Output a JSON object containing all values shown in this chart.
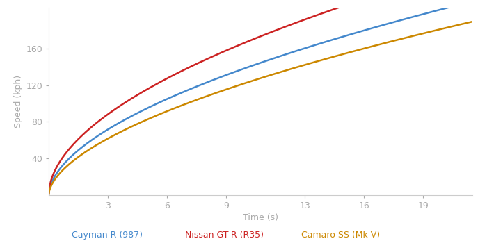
{
  "xlabel": "Time (s)",
  "ylabel": "Speed (kph)",
  "background_color": "#ffffff",
  "spine_color": "#cccccc",
  "text_color": "#aaaaaa",
  "xticks": [
    3,
    6,
    9,
    13,
    16,
    19
  ],
  "yticks": [
    40,
    80,
    120,
    160
  ],
  "xlim": [
    0,
    21.5
  ],
  "ylim": [
    0,
    205
  ],
  "curves": [
    {
      "label": "Cayman R (987)",
      "color": "#4488cc",
      "t_ref": 5.5,
      "v_ref": 100,
      "n": 0.55
    },
    {
      "label": "Nissan GT-R (R35)",
      "color": "#cc2222",
      "t_ref": 3.8,
      "v_ref": 100,
      "n": 0.53
    },
    {
      "label": "Camaro SS (Mk V)",
      "color": "#cc8800",
      "t_ref": 7.0,
      "v_ref": 100,
      "n": 0.57
    }
  ],
  "line_width": 1.8,
  "legend_colors": [
    "#4488cc",
    "#cc2222",
    "#cc8800"
  ],
  "legend_labels": [
    "Cayman R (987)",
    "Nissan GT-R (R35)",
    "Camaro SS (Mk V)"
  ]
}
